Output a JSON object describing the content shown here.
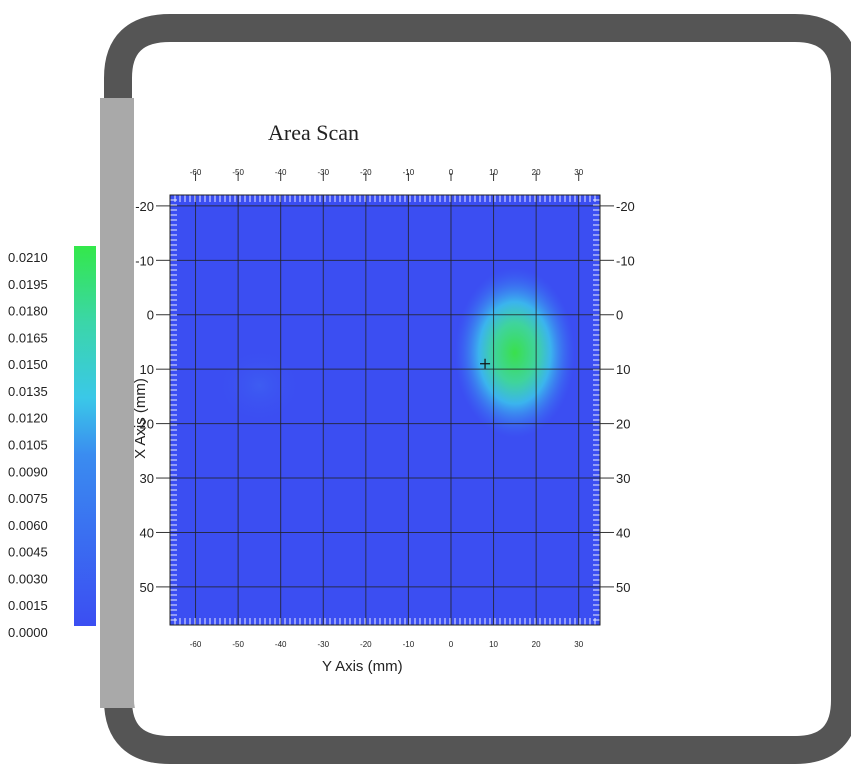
{
  "chart_data": {
    "type": "heatmap",
    "title": "Area Scan",
    "xlabel": "Y Axis (mm)",
    "ylabel": "X Axis (mm)",
    "x_ticks": [
      -60,
      -50,
      -40,
      -30,
      -20,
      -10,
      0,
      10,
      20,
      30
    ],
    "y_ticks": [
      -20,
      -10,
      0,
      10,
      20,
      30,
      40,
      50
    ],
    "xlim": [
      -66,
      35
    ],
    "ylim": [
      -22,
      57
    ],
    "colorbar": {
      "min": 0.0,
      "max": 0.021,
      "labels": [
        "0.0210",
        "0.0195",
        "0.0180",
        "0.0165",
        "0.0150",
        "0.0135",
        "0.0120",
        "0.0105",
        "0.0090",
        "0.0075",
        "0.0060",
        "0.0045",
        "0.0030",
        "0.0015",
        "0.0000"
      ],
      "low_color": "#3b4ef2",
      "high_color": "#33e84a"
    },
    "peak": {
      "y_mm": 15,
      "x_mm": 7,
      "value": 0.017
    },
    "secondary_blob": {
      "y_mm": -45,
      "x_mm": 13,
      "value": 0.0015
    },
    "marker": {
      "y_mm": 8,
      "x_mm": 9
    },
    "grid": true
  }
}
